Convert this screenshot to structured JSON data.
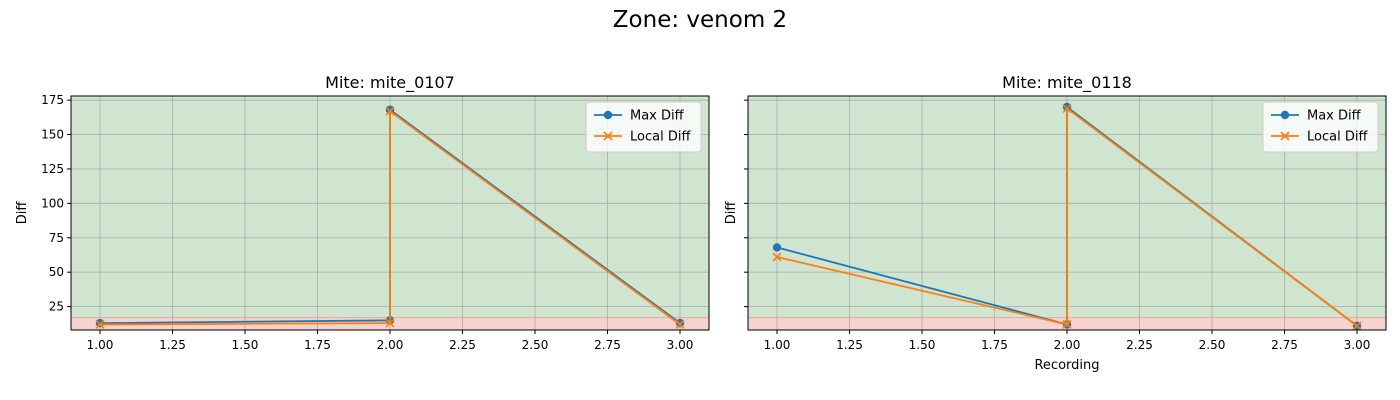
{
  "figure": {
    "title": "Zone: venom 2"
  },
  "style": {
    "good_zone_color": "#cfe5cf",
    "bad_zone_color": "#f7d2cf",
    "max_diff_color": "#1f77b4",
    "local_diff_color": "#ff7f0e",
    "grid_color": "#b0b0b0"
  },
  "chart_data": [
    {
      "type": "line",
      "title": "Mite: mite_0107",
      "xlabel": "",
      "ylabel": "Diff",
      "xlim": [
        0.9,
        3.1
      ],
      "ylim": [
        8,
        178
      ],
      "xticks": [
        1.0,
        1.25,
        1.5,
        1.75,
        2.0,
        2.25,
        2.5,
        2.75,
        3.0
      ],
      "xtick_labels": [
        "1.00",
        "1.25",
        "1.50",
        "1.75",
        "2.00",
        "2.25",
        "2.50",
        "2.75",
        "3.00"
      ],
      "yticks": [
        25,
        50,
        75,
        100,
        125,
        150,
        175
      ],
      "ytick_labels": [
        "25",
        "50",
        "75",
        "100",
        "125",
        "150",
        "175"
      ],
      "grid": true,
      "legend": "top-right",
      "bands": [
        {
          "from": 8,
          "to": 17,
          "color": "bad"
        },
        {
          "from": 17,
          "to": 178,
          "color": "good"
        }
      ],
      "series": [
        {
          "name": "Max Diff",
          "marker": "o",
          "x": [
            1,
            2,
            2,
            3
          ],
          "y": [
            13,
            15,
            168,
            13
          ]
        },
        {
          "name": "Local Diff",
          "marker": "x",
          "x": [
            1,
            2,
            2,
            3
          ],
          "y": [
            12,
            13,
            167,
            12
          ]
        }
      ]
    },
    {
      "type": "line",
      "title": "Mite: mite_0118",
      "xlabel": "Recording",
      "ylabel": "Diff",
      "xlim": [
        0.9,
        3.1
      ],
      "ylim": [
        8,
        178
      ],
      "xticks": [
        1.0,
        1.25,
        1.5,
        1.75,
        2.0,
        2.25,
        2.5,
        2.75,
        3.0
      ],
      "xtick_labels": [
        "1.00",
        "1.25",
        "1.50",
        "1.75",
        "2.00",
        "2.25",
        "2.50",
        "2.75",
        "3.00"
      ],
      "yticks": [
        25,
        50,
        75,
        100,
        125,
        150,
        175
      ],
      "ytick_labels": [],
      "grid": true,
      "legend": "top-right",
      "bands": [
        {
          "from": 8,
          "to": 17,
          "color": "bad"
        },
        {
          "from": 17,
          "to": 178,
          "color": "good"
        }
      ],
      "series": [
        {
          "name": "Max Diff",
          "marker": "o",
          "x": [
            1,
            2,
            2,
            3
          ],
          "y": [
            68,
            12,
            170,
            11
          ]
        },
        {
          "name": "Local Diff",
          "marker": "x",
          "x": [
            1,
            2,
            2,
            3
          ],
          "y": [
            61,
            12,
            169,
            11
          ]
        }
      ]
    }
  ]
}
